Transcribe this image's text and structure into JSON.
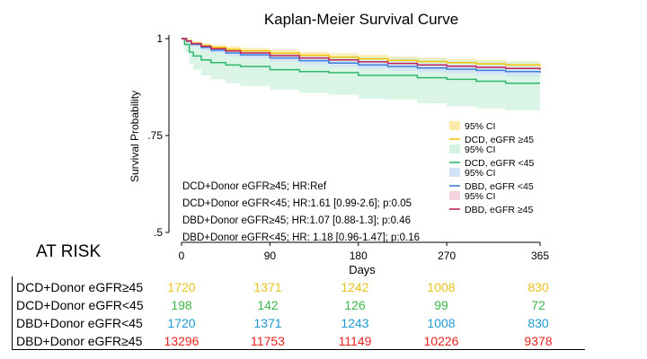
{
  "chart_data": {
    "type": "line",
    "title": "Kaplan-Meier Survival Curve",
    "xlabel": "Days",
    "ylabel": "Survival Probability",
    "xlim": [
      0,
      365
    ],
    "ylim": [
      0.5,
      1.0
    ],
    "xticks": [
      0,
      90,
      180,
      270,
      365
    ],
    "yticks": [
      0.5,
      0.75,
      1.0
    ],
    "ytick_labels": [
      ".5",
      ".75",
      "1"
    ],
    "series": [
      {
        "name": "DCD, eGFR ≥45",
        "color": "#f2c200",
        "ci_color": "#fde9a8",
        "x": [
          0,
          5,
          10,
          20,
          30,
          45,
          60,
          90,
          120,
          150,
          180,
          210,
          240,
          270,
          300,
          330,
          365
        ],
        "y": [
          1.0,
          0.995,
          0.988,
          0.982,
          0.977,
          0.972,
          0.968,
          0.962,
          0.957,
          0.952,
          0.948,
          0.944,
          0.941,
          0.938,
          0.935,
          0.932,
          0.929
        ],
        "ci_lower": [
          1.0,
          0.991,
          0.983,
          0.976,
          0.97,
          0.965,
          0.96,
          0.953,
          0.948,
          0.943,
          0.939,
          0.935,
          0.931,
          0.928,
          0.925,
          0.922,
          0.918
        ],
        "ci_upper": [
          1.0,
          0.998,
          0.993,
          0.988,
          0.984,
          0.98,
          0.976,
          0.971,
          0.966,
          0.962,
          0.958,
          0.954,
          0.951,
          0.948,
          0.945,
          0.942,
          0.939
        ]
      },
      {
        "name": "DCD, eGFR <45",
        "color": "#2eb86a",
        "ci_color": "#d4f2e2",
        "x": [
          0,
          3,
          8,
          12,
          20,
          30,
          45,
          60,
          90,
          120,
          150,
          180,
          210,
          240,
          270,
          300,
          330,
          365
        ],
        "y": [
          1.0,
          0.985,
          0.965,
          0.955,
          0.945,
          0.938,
          0.932,
          0.928,
          0.92,
          0.915,
          0.912,
          0.905,
          0.905,
          0.899,
          0.895,
          0.89,
          0.885,
          0.885
        ],
        "ci_lower": [
          1.0,
          0.965,
          0.935,
          0.92,
          0.905,
          0.895,
          0.885,
          0.878,
          0.868,
          0.86,
          0.855,
          0.845,
          0.843,
          0.833,
          0.825,
          0.82,
          0.815,
          0.815
        ],
        "ci_upper": [
          1.0,
          0.997,
          0.99,
          0.985,
          0.98,
          0.975,
          0.972,
          0.968,
          0.962,
          0.958,
          0.955,
          0.952,
          0.951,
          0.948,
          0.945,
          0.942,
          0.94,
          0.94
        ]
      },
      {
        "name": "DBD, eGFR <45",
        "color": "#3d7fd9",
        "ci_color": "#d2e2f7",
        "x": [
          0,
          5,
          10,
          20,
          30,
          45,
          60,
          90,
          120,
          150,
          180,
          210,
          240,
          270,
          300,
          330,
          365
        ],
        "y": [
          1.0,
          0.993,
          0.985,
          0.977,
          0.97,
          0.963,
          0.958,
          0.95,
          0.943,
          0.937,
          0.932,
          0.928,
          0.924,
          0.921,
          0.918,
          0.915,
          0.912
        ],
        "ci_lower": [
          1.0,
          0.989,
          0.979,
          0.97,
          0.962,
          0.955,
          0.949,
          0.94,
          0.933,
          0.927,
          0.922,
          0.917,
          0.913,
          0.91,
          0.906,
          0.903,
          0.9
        ],
        "ci_upper": [
          1.0,
          0.996,
          0.99,
          0.984,
          0.978,
          0.971,
          0.966,
          0.959,
          0.953,
          0.947,
          0.942,
          0.938,
          0.935,
          0.932,
          0.929,
          0.926,
          0.923
        ]
      },
      {
        "name": "DBD, eGFR ≥45",
        "color": "#c0245c",
        "ci_color": "#f5d3df",
        "x": [
          0,
          5,
          10,
          20,
          30,
          45,
          60,
          90,
          120,
          150,
          180,
          210,
          240,
          270,
          300,
          330,
          365
        ],
        "y": [
          1.0,
          0.994,
          0.987,
          0.98,
          0.974,
          0.968,
          0.963,
          0.956,
          0.95,
          0.945,
          0.94,
          0.936,
          0.932,
          0.929,
          0.926,
          0.923,
          0.92
        ],
        "ci_lower": [
          1.0,
          0.993,
          0.985,
          0.978,
          0.972,
          0.966,
          0.961,
          0.954,
          0.948,
          0.943,
          0.938,
          0.934,
          0.93,
          0.927,
          0.924,
          0.921,
          0.918
        ],
        "ci_upper": [
          1.0,
          0.995,
          0.989,
          0.982,
          0.976,
          0.97,
          0.965,
          0.958,
          0.952,
          0.947,
          0.942,
          0.938,
          0.934,
          0.931,
          0.928,
          0.925,
          0.922
        ]
      }
    ],
    "legend": {
      "position": "right",
      "ci_label": "95% CI",
      "entries": [
        {
          "ci": "95% CI",
          "label": "DCD, eGFR ≥45",
          "color": "#f2c200",
          "ci_color": "#fde9a8"
        },
        {
          "ci": "95% CI",
          "label": "DCD, eGFR <45",
          "color": "#2eb86a",
          "ci_color": "#d4f2e2"
        },
        {
          "ci": "95% CI",
          "label": "DBD, eGFR <45",
          "color": "#3d7fd9",
          "ci_color": "#d2e2f7"
        },
        {
          "ci": "95% CI",
          "label": "DBD, eGFR ≥45",
          "color": "#c0245c",
          "ci_color": "#f5d3df"
        }
      ]
    },
    "annotations": [
      "DCD+Donor eGFR≥45; HR:Ref",
      "DCD+Donor eGFR<45; HR:1.61 [0.99-2.6]; p:0.05",
      "DBD+Donor eGFR≥45; HR:1.07 [0.88-1.3]; p:0.46",
      "DBD+Donor eGFR<45; HR: 1.18 [0.96-1.47]; p:0.16"
    ]
  },
  "at_risk": {
    "title": "AT RISK",
    "columns": [
      0,
      90,
      180,
      270,
      365
    ],
    "rows": [
      {
        "label": "DCD+Donor eGFR≥45",
        "color": "#e8c21c",
        "values": [
          "1720",
          "1371",
          "1242",
          "1008",
          "830"
        ]
      },
      {
        "label": "DCD+Donor eGFR<45",
        "color": "#3cb54a",
        "values": [
          "198",
          "142",
          "126",
          "99",
          "72"
        ]
      },
      {
        "label": "DBD+Donor eGFR<45",
        "color": "#1f9bd1",
        "values": [
          "1720",
          "1371",
          "1243",
          "1008",
          "830"
        ]
      },
      {
        "label": "DBD+Donor eGFR≥45",
        "color": "#e8231f",
        "values": [
          "13296",
          "11753",
          "11149",
          "10226",
          "9378"
        ]
      }
    ]
  }
}
